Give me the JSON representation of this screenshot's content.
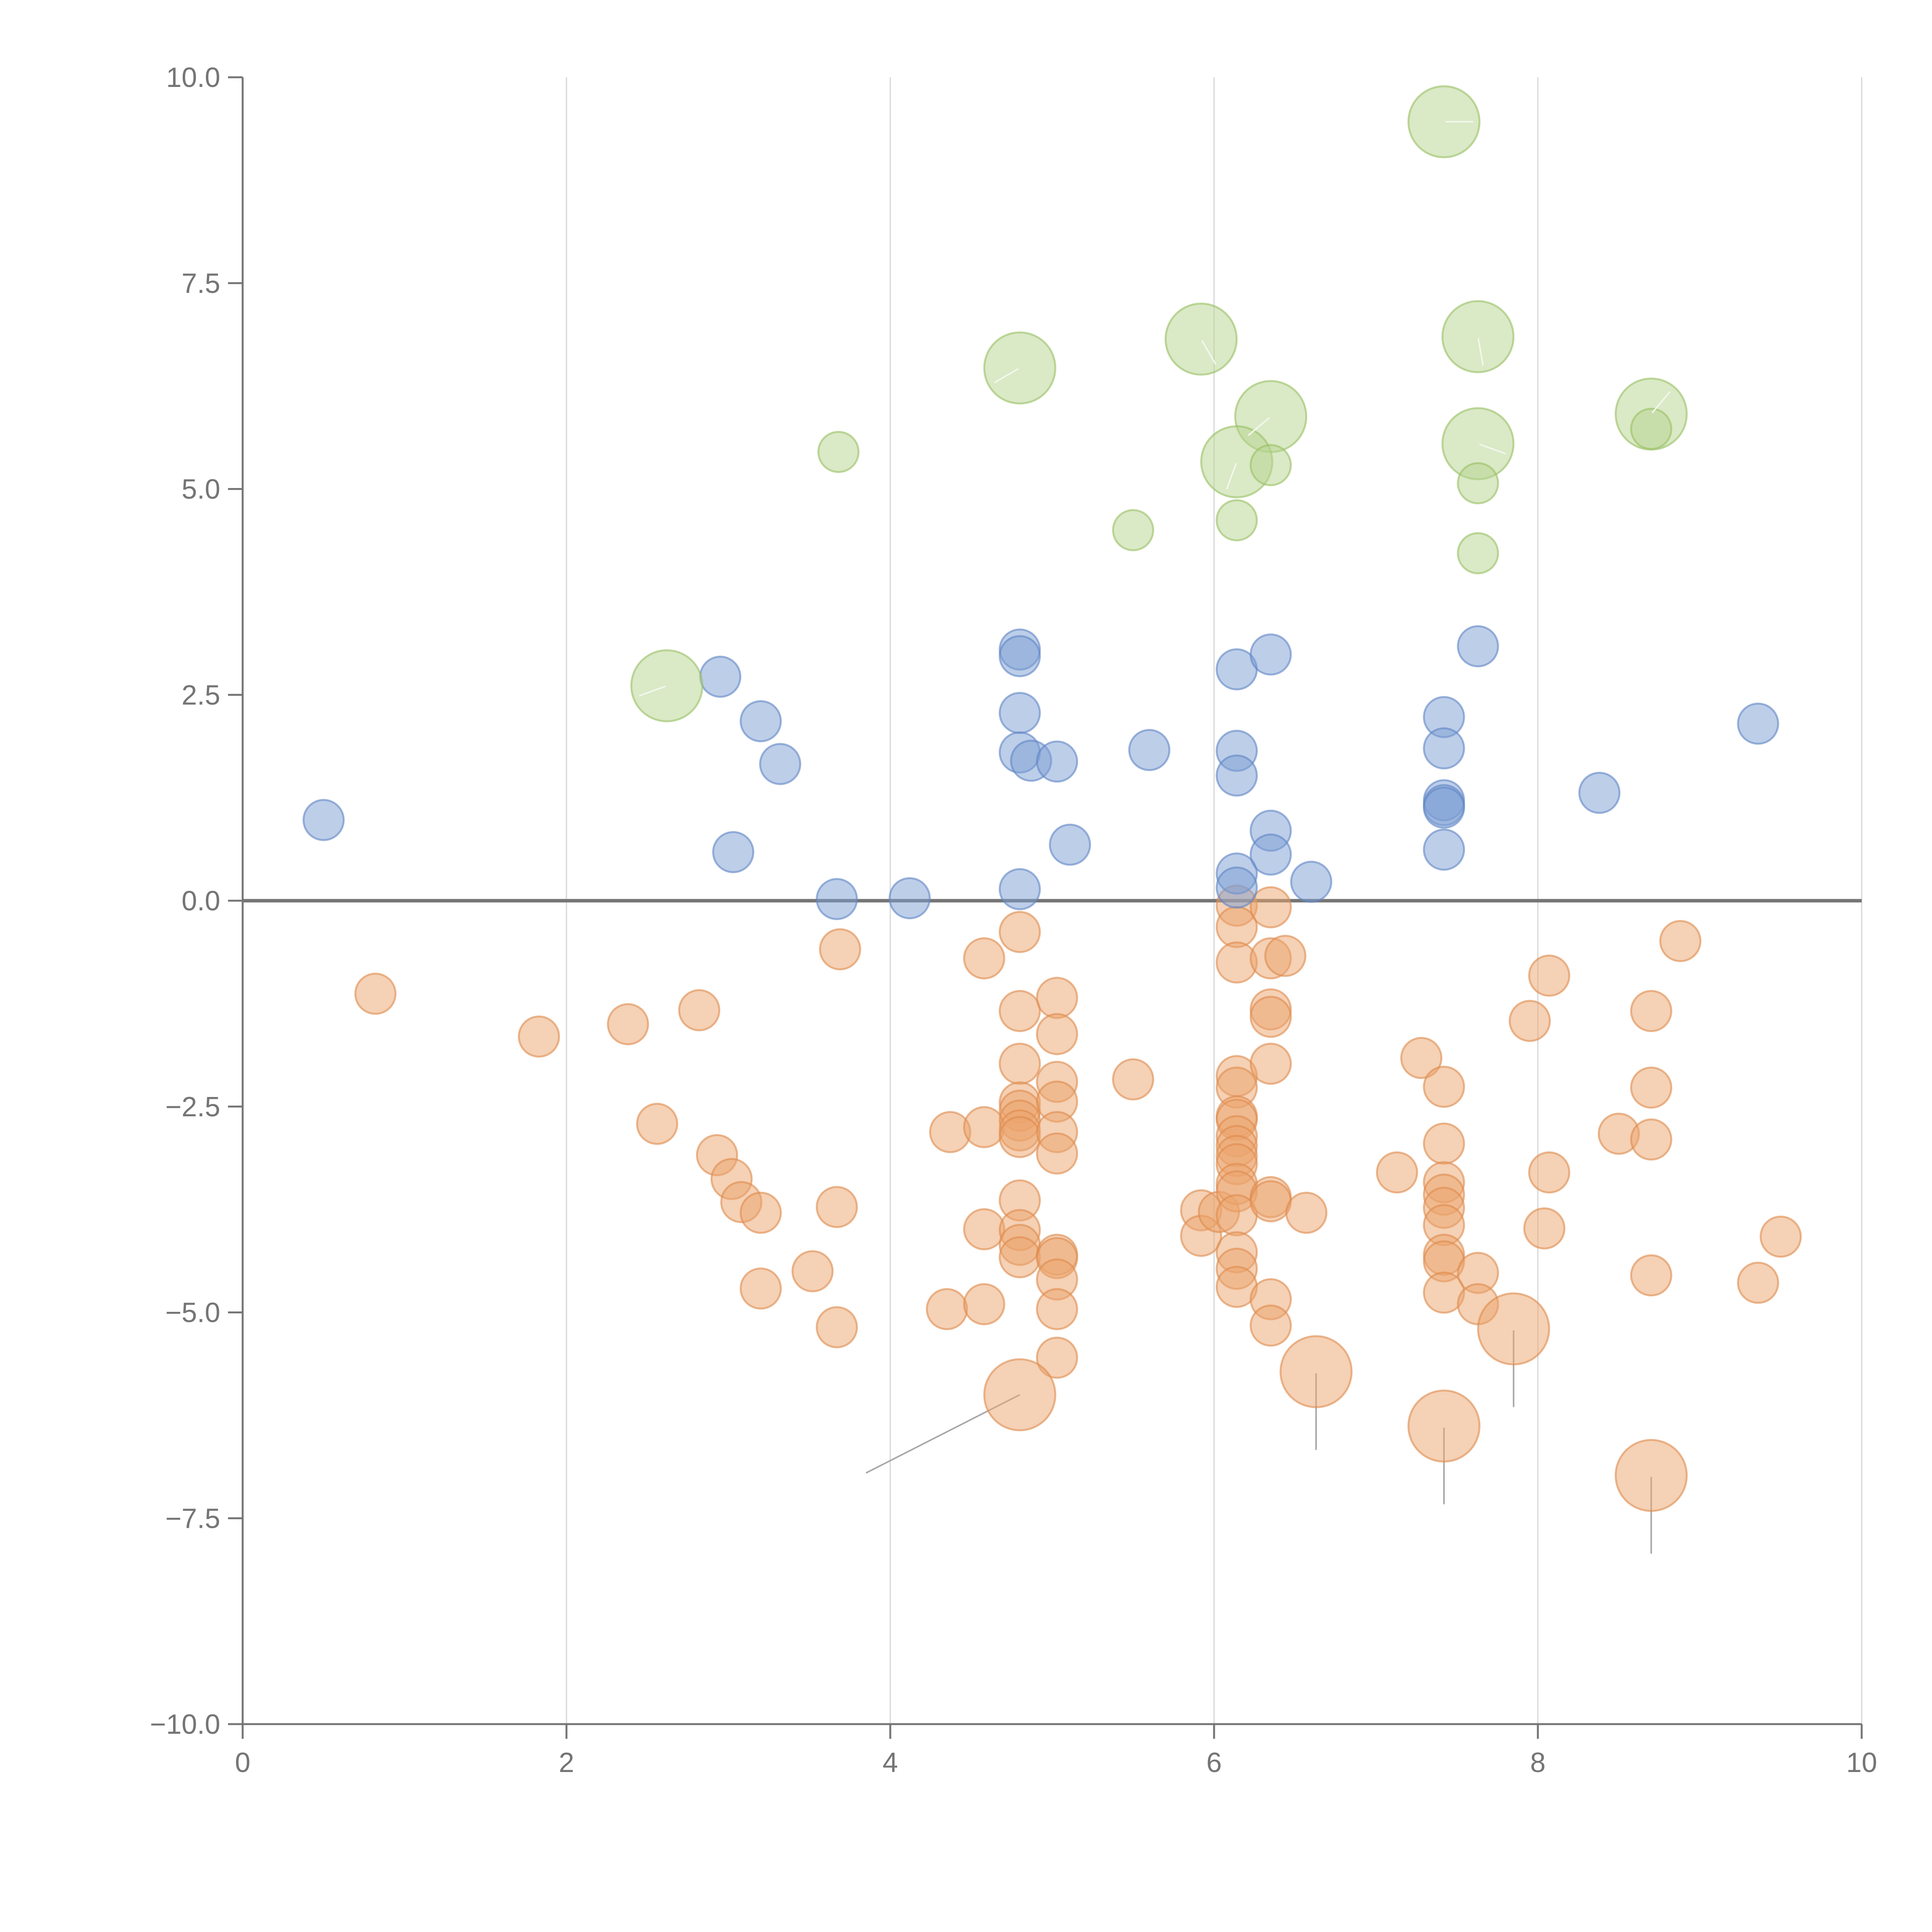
{
  "chart_data": {
    "type": "scatter",
    "title": "",
    "xlabel": "",
    "ylabel": "",
    "xlim": [
      0,
      10
    ],
    "ylim": [
      -10,
      10
    ],
    "x_ticks": [
      "0",
      "2",
      "4",
      "6",
      "8",
      "10"
    ],
    "y_ticks": [
      "10.0",
      "7.5",
      "5.0",
      "2.5",
      "0.0",
      "−2.5",
      "−5.0",
      "−7.5",
      "−10.0"
    ],
    "x_tick_values": [
      0,
      2,
      4,
      6,
      8,
      10
    ],
    "y_tick_values": [
      10,
      7.5,
      5,
      2.5,
      0,
      -2.5,
      -5,
      -7.5,
      -10
    ],
    "grid": "vertical only",
    "reference_line_y": 0,
    "colors": {
      "blue": "#7b9ed3",
      "blue_stroke": "#5f86c4",
      "orange": "#eba36c",
      "orange_stroke": "#dd8a4c",
      "green": "#b6d38d",
      "green_stroke": "#97bf62",
      "axis": "#757575",
      "grid": "#d6d6d6"
    },
    "series": [
      {
        "name": "blue",
        "size": "small",
        "points": [
          [
            0.5,
            0.98
          ],
          [
            2.95,
            2.72
          ],
          [
            3.2,
            2.18
          ],
          [
            3.32,
            1.66
          ],
          [
            3.03,
            0.59
          ],
          [
            3.67,
            0.02
          ],
          [
            4.12,
            0.03
          ],
          [
            4.8,
            3.05
          ],
          [
            4.8,
            2.97
          ],
          [
            4.8,
            2.28
          ],
          [
            4.8,
            1.8
          ],
          [
            4.87,
            1.7
          ],
          [
            5.03,
            1.69
          ],
          [
            5.11,
            0.68
          ],
          [
            4.8,
            0.14
          ],
          [
            5.6,
            1.83
          ],
          [
            6.14,
            2.81
          ],
          [
            6.35,
            2.99
          ],
          [
            6.14,
            1.82
          ],
          [
            6.14,
            1.52
          ],
          [
            6.35,
            0.85
          ],
          [
            6.35,
            0.56
          ],
          [
            6.14,
            0.33
          ],
          [
            6.14,
            0.16
          ],
          [
            6.6,
            0.23
          ],
          [
            7.42,
            2.23
          ],
          [
            7.42,
            1.85
          ],
          [
            7.42,
            1.22
          ],
          [
            7.42,
            1.16
          ],
          [
            7.42,
            1.13
          ],
          [
            7.42,
            0.62
          ],
          [
            7.63,
            3.09
          ],
          [
            8.38,
            1.31
          ],
          [
            9.36,
            2.15
          ]
        ]
      },
      {
        "name": "orange",
        "size": "small",
        "points": [
          [
            0.82,
            -1.13
          ],
          [
            1.83,
            -1.65
          ],
          [
            2.38,
            -1.5
          ],
          [
            2.82,
            -1.33
          ],
          [
            2.56,
            -2.71
          ],
          [
            2.93,
            -3.09
          ],
          [
            3.02,
            -3.38
          ],
          [
            3.08,
            -3.66
          ],
          [
            3.2,
            -3.79
          ],
          [
            3.2,
            -4.71
          ],
          [
            3.52,
            -4.5
          ],
          [
            3.67,
            -5.18
          ],
          [
            3.67,
            -3.72
          ],
          [
            3.69,
            -0.59
          ],
          [
            4.35,
            -4.96
          ],
          [
            4.37,
            -2.81
          ],
          [
            4.58,
            -2.75
          ],
          [
            4.58,
            -0.7
          ],
          [
            4.58,
            -3.99
          ],
          [
            4.58,
            -4.9
          ],
          [
            4.8,
            -0.38
          ],
          [
            4.8,
            -1.34
          ],
          [
            4.8,
            -1.98
          ],
          [
            4.8,
            -2.45
          ],
          [
            4.8,
            -2.55
          ],
          [
            4.8,
            -2.67
          ],
          [
            4.8,
            -2.79
          ],
          [
            4.8,
            -2.87
          ],
          [
            4.8,
            -3.64
          ],
          [
            4.8,
            -4.0
          ],
          [
            4.8,
            -4.18
          ],
          [
            4.8,
            -4.33
          ],
          [
            5.03,
            -1.18
          ],
          [
            5.03,
            -1.62
          ],
          [
            5.03,
            -2.2
          ],
          [
            5.03,
            -2.44
          ],
          [
            5.03,
            -2.81
          ],
          [
            5.03,
            -3.07
          ],
          [
            5.03,
            -4.3
          ],
          [
            5.03,
            -4.34
          ],
          [
            5.03,
            -4.6
          ],
          [
            5.03,
            -4.96
          ],
          [
            5.03,
            -5.55
          ],
          [
            5.5,
            -2.17
          ],
          [
            5.92,
            -3.76
          ],
          [
            5.92,
            -4.07
          ],
          [
            6.03,
            -3.78
          ],
          [
            6.14,
            -0.06
          ],
          [
            6.14,
            -0.32
          ],
          [
            6.14,
            -0.75
          ],
          [
            6.14,
            -2.13
          ],
          [
            6.14,
            -2.27
          ],
          [
            6.14,
            -2.62
          ],
          [
            6.14,
            -2.66
          ],
          [
            6.14,
            -2.86
          ],
          [
            6.14,
            -2.98
          ],
          [
            6.14,
            -3.1
          ],
          [
            6.14,
            -3.2
          ],
          [
            6.14,
            -3.44
          ],
          [
            6.14,
            -3.53
          ],
          [
            6.14,
            -3.82
          ],
          [
            6.14,
            -4.27
          ],
          [
            6.14,
            -4.47
          ],
          [
            6.14,
            -4.69
          ],
          [
            6.35,
            -0.08
          ],
          [
            6.35,
            -0.7
          ],
          [
            6.35,
            -1.32
          ],
          [
            6.35,
            -1.41
          ],
          [
            6.35,
            -1.98
          ],
          [
            6.35,
            -3.6
          ],
          [
            6.35,
            -3.65
          ],
          [
            6.35,
            -4.84
          ],
          [
            6.35,
            -5.16
          ],
          [
            6.44,
            -0.67
          ],
          [
            6.57,
            -3.79
          ],
          [
            7.13,
            -3.3
          ],
          [
            7.28,
            -1.91
          ],
          [
            7.42,
            -2.26
          ],
          [
            7.42,
            -2.95
          ],
          [
            7.42,
            -3.42
          ],
          [
            7.42,
            -3.57
          ],
          [
            7.42,
            -3.73
          ],
          [
            7.42,
            -3.94
          ],
          [
            7.42,
            -4.3
          ],
          [
            7.42,
            -4.38
          ],
          [
            7.42,
            -4.76
          ],
          [
            7.63,
            -4.52
          ],
          [
            7.63,
            -4.9
          ],
          [
            7.95,
            -1.46
          ],
          [
            8.04,
            -3.98
          ],
          [
            8.07,
            -0.91
          ],
          [
            8.07,
            -3.3
          ],
          [
            8.5,
            -2.83
          ],
          [
            8.7,
            -1.34
          ],
          [
            8.7,
            -2.27
          ],
          [
            8.7,
            -2.9
          ],
          [
            8.7,
            -4.55
          ],
          [
            8.88,
            -0.49
          ],
          [
            9.36,
            -4.64
          ],
          [
            9.5,
            -4.08
          ]
        ]
      },
      {
        "name": "orange-large",
        "size": "large",
        "points": [
          [
            4.8,
            -6.0
          ],
          [
            6.63,
            -5.72
          ],
          [
            7.42,
            -6.38
          ],
          [
            7.85,
            -5.2
          ],
          [
            8.7,
            -6.98
          ]
        ]
      },
      {
        "name": "green",
        "size": "small",
        "points": [
          [
            3.68,
            5.45
          ],
          [
            5.5,
            4.5
          ],
          [
            6.14,
            4.62
          ],
          [
            6.35,
            5.29
          ],
          [
            7.63,
            5.07
          ],
          [
            7.63,
            4.22
          ],
          [
            8.7,
            5.73
          ]
        ]
      },
      {
        "name": "green-large",
        "size": "large",
        "points": [
          [
            2.62,
            2.61
          ],
          [
            4.8,
            6.47
          ],
          [
            5.92,
            6.82
          ],
          [
            6.35,
            5.88
          ],
          [
            6.14,
            5.33
          ],
          [
            7.42,
            9.46
          ],
          [
            7.63,
            6.85
          ],
          [
            7.63,
            5.55
          ],
          [
            8.7,
            5.91
          ]
        ]
      }
    ]
  }
}
